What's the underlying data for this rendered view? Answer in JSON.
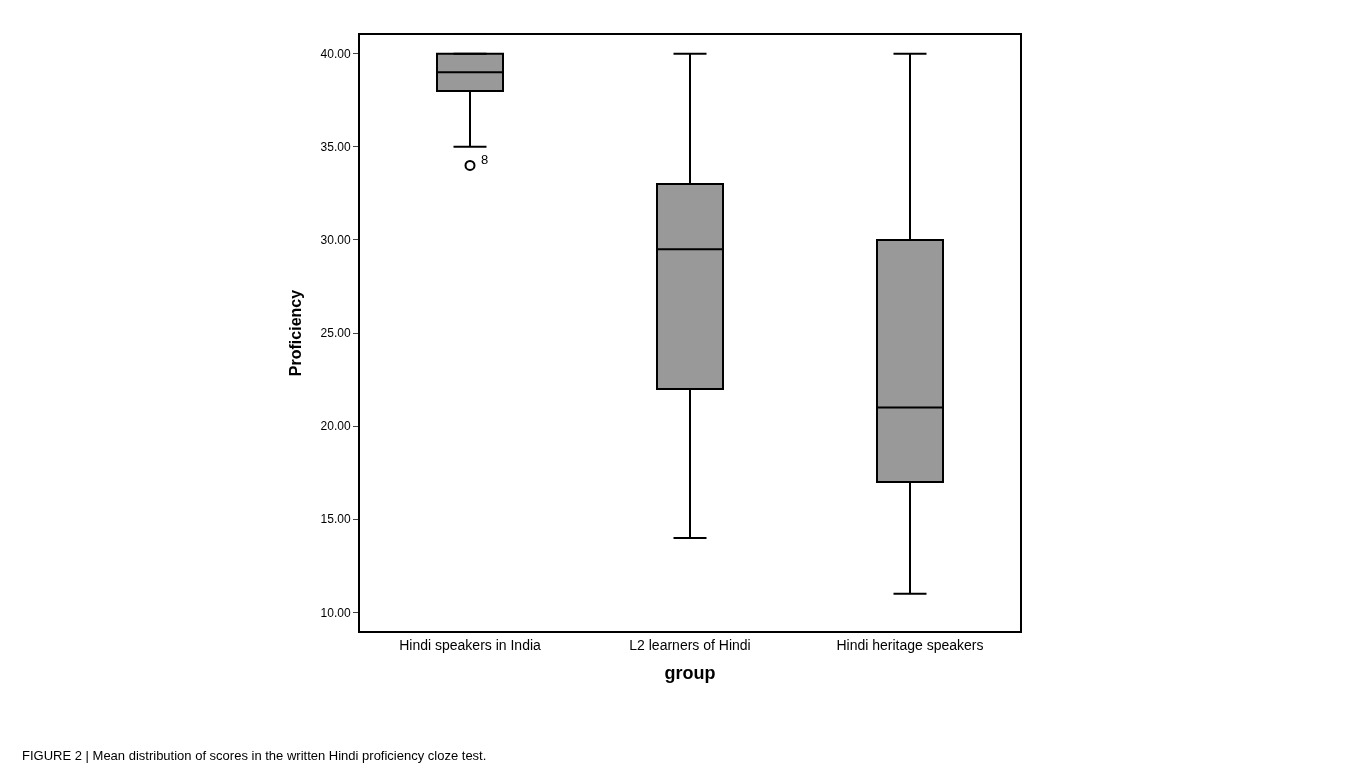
{
  "chart_data": {
    "type": "box",
    "xlabel": "group",
    "ylabel": "Proficiency",
    "categories": [
      "Hindi speakers in India",
      "L2 learners of Hindi",
      "Hindi heritage speakers"
    ],
    "boxes": [
      {
        "low": 35,
        "q1": 38,
        "median": 39,
        "q3": 40,
        "high": 40,
        "outliers": [
          34
        ]
      },
      {
        "low": 14,
        "q1": 22,
        "median": 29.5,
        "q3": 33,
        "high": 40
      },
      {
        "low": 11,
        "q1": 17,
        "median": 21,
        "q3": 30,
        "high": 40
      }
    ],
    "color": "#999999",
    "ylim": [
      9,
      41
    ],
    "yticks": [
      {
        "value": 10,
        "label": "10.00"
      },
      {
        "value": 15,
        "label": "15.00"
      },
      {
        "value": 20,
        "label": "20.00"
      },
      {
        "value": 25,
        "label": "25.00"
      },
      {
        "value": 30,
        "label": "30.00"
      },
      {
        "value": 35,
        "label": "35.00"
      },
      {
        "value": 40,
        "label": "40.00"
      }
    ],
    "annotations": [
      "8",
      "FIGURE 2 | Mean distribution of scores in the written Hindi proficiency cloze test."
    ]
  }
}
